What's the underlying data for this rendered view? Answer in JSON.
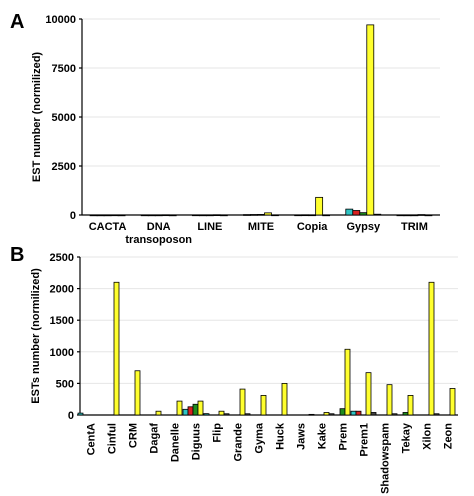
{
  "figure": {
    "panels": [
      {
        "letter": "A"
      },
      {
        "letter": "B"
      }
    ]
  },
  "colors": {
    "s1": "#2ec4c4",
    "s2": "#d82020",
    "s3": "#1e8c1e",
    "s4": "#ffff2e",
    "s5": "#444444"
  },
  "chart_data": [
    {
      "type": "bar",
      "ylabel": "EST number (normilized)",
      "ylim": [
        0,
        10000
      ],
      "yticks": [
        0,
        2500,
        5000,
        7500,
        10000
      ],
      "grid": true,
      "categories": [
        [
          "CACTA"
        ],
        [
          "DNA",
          "transoposon"
        ],
        [
          "LINE"
        ],
        [
          "MITE"
        ],
        [
          "Copia"
        ],
        [
          "Gypsy"
        ],
        [
          "TRIM"
        ]
      ],
      "series": [
        {
          "color_key": "s1",
          "values": [
            2,
            3,
            5,
            20,
            5,
            300,
            3
          ]
        },
        {
          "color_key": "s2",
          "values": [
            1,
            2,
            3,
            25,
            8,
            230,
            2
          ]
        },
        {
          "color_key": "s3",
          "values": [
            1,
            2,
            3,
            30,
            6,
            120,
            2
          ]
        },
        {
          "color_key": "s4",
          "values": [
            5,
            8,
            10,
            110,
            900,
            9700,
            20
          ]
        },
        {
          "color_key": "s5",
          "values": [
            1,
            1,
            2,
            5,
            3,
            40,
            2
          ]
        }
      ]
    },
    {
      "type": "bar",
      "ylabel": "ESTs number (normilized)",
      "ylim": [
        0,
        2500
      ],
      "yticks": [
        0,
        500,
        1000,
        1500,
        2000,
        2500
      ],
      "grid": true,
      "categories": [
        "CentA",
        "Cinful",
        "CRM",
        "Dagaf",
        "Danelle",
        "Diguus",
        "Flip",
        "Grande",
        "Gyma",
        "Huck",
        "Jaws",
        "Kake",
        "Prem",
        "Prem1",
        "Shadowspam",
        "Tekay",
        "Xilon",
        "Zeon"
      ],
      "series": [
        {
          "color_key": "s1",
          "values": [
            30,
            0,
            0,
            0,
            0,
            90,
            20,
            0,
            0,
            0,
            0,
            10,
            0,
            60,
            0,
            0,
            0,
            0
          ]
        },
        {
          "color_key": "s2",
          "values": [
            0,
            0,
            0,
            0,
            0,
            130,
            0,
            0,
            0,
            0,
            0,
            0,
            0,
            60,
            0,
            0,
            0,
            0
          ]
        },
        {
          "color_key": "s3",
          "values": [
            0,
            0,
            0,
            0,
            0,
            170,
            0,
            0,
            0,
            0,
            0,
            0,
            100,
            0,
            0,
            40,
            0,
            0
          ]
        },
        {
          "color_key": "s4",
          "values": [
            0,
            2100,
            700,
            60,
            220,
            220,
            60,
            410,
            310,
            500,
            0,
            40,
            1040,
            670,
            480,
            310,
            2100,
            420
          ]
        },
        {
          "color_key": "s5",
          "values": [
            0,
            0,
            0,
            0,
            0,
            20,
            20,
            20,
            0,
            0,
            0,
            20,
            0,
            40,
            20,
            0,
            20,
            0
          ]
        }
      ]
    }
  ]
}
